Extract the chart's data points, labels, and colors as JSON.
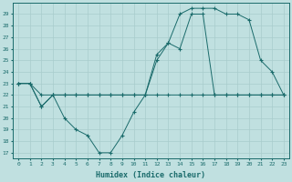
{
  "xlabel": "Humidex (Indice chaleur)",
  "xlim": [
    -0.5,
    23.5
  ],
  "ylim": [
    16.5,
    30.0
  ],
  "yticks": [
    17,
    18,
    19,
    20,
    21,
    22,
    23,
    24,
    25,
    26,
    27,
    28,
    29
  ],
  "xticks": [
    0,
    1,
    2,
    3,
    4,
    5,
    6,
    7,
    8,
    9,
    10,
    11,
    12,
    13,
    14,
    15,
    16,
    17,
    18,
    19,
    20,
    21,
    22,
    23
  ],
  "line_color": "#1a6b6b",
  "bg_color": "#c0e0e0",
  "grid_color": "#a8cccc",
  "line1_x": [
    0,
    1,
    2,
    3,
    4,
    5,
    6,
    7,
    8,
    9,
    10,
    11,
    12,
    13,
    14,
    15,
    16,
    17,
    18,
    19,
    20,
    21,
    22,
    23
  ],
  "line1_y": [
    23,
    23,
    22,
    22,
    22,
    22,
    22,
    22,
    22,
    22,
    22,
    22,
    22,
    22,
    22,
    22,
    22,
    22,
    22,
    22,
    22,
    22,
    22,
    22
  ],
  "line2_x": [
    0,
    1,
    2,
    3,
    4,
    5,
    6,
    7,
    8,
    9,
    10,
    11,
    12,
    13,
    14,
    15,
    16,
    17,
    18,
    19,
    20,
    21,
    22,
    23
  ],
  "line2_y": [
    23,
    23,
    21,
    22,
    20,
    19,
    18.5,
    17,
    17,
    18.5,
    20.5,
    22,
    25,
    26.5,
    26,
    29,
    29,
    22,
    22,
    22,
    22,
    22,
    22,
    22
  ],
  "line3_x": [
    0,
    1,
    2,
    3,
    4,
    5,
    6,
    7,
    8,
    9,
    10,
    11,
    12,
    13,
    14,
    15,
    16,
    17,
    18,
    19,
    20,
    21,
    22,
    23
  ],
  "line3_y": [
    23,
    23,
    21,
    22,
    22,
    22,
    22,
    22,
    22,
    22,
    22,
    22,
    25.5,
    26.5,
    29,
    29.5,
    29.5,
    29.5,
    29,
    29,
    28.5,
    25,
    24,
    22
  ]
}
